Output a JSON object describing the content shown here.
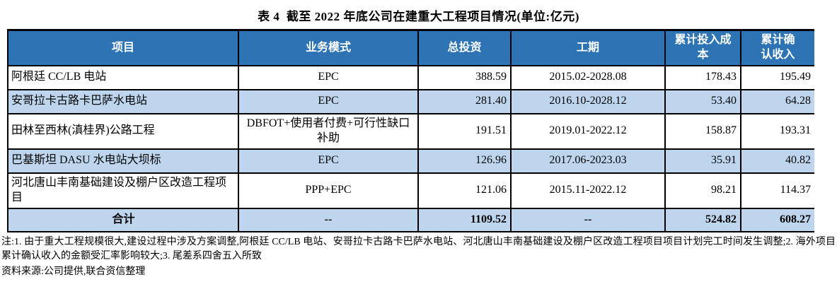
{
  "title": "表 4  截至 2022 年底公司在建重大工程项目情况(单位:亿元)",
  "colors": {
    "header_bg": "#2E74B5",
    "band_bg": "#BDD6EE",
    "border": "#000000",
    "header_text": "#FFFFFF"
  },
  "table": {
    "columns": [
      {
        "label": "项目"
      },
      {
        "label": "业务模式"
      },
      {
        "label": "总投资"
      },
      {
        "label": "工期"
      },
      {
        "label": "累计投入成\n本"
      },
      {
        "label": "累计确\n认收入"
      }
    ],
    "rows": [
      {
        "project": "阿根廷 CC/LB 电站",
        "model": "EPC",
        "investment": "388.59",
        "period": "2015.02-2028.08",
        "cost": "178.43",
        "revenue": "195.49"
      },
      {
        "project": "安哥拉卡古路卡巴萨水电站",
        "model": "EPC",
        "investment": "281.40",
        "period": "2016.10-2028.12",
        "cost": "53.40",
        "revenue": "64.28"
      },
      {
        "project": "田林至西林(滇桂界)公路工程",
        "model": "DBFOT+使用者付费+可行性缺口补助",
        "investment": "191.51",
        "period": "2019.01-2022.12",
        "cost": "158.87",
        "revenue": "193.31"
      },
      {
        "project": "巴基斯坦 DASU 水电站大坝标",
        "model": "EPC",
        "investment": "126.96",
        "period": "2017.06-2023.03",
        "cost": "35.91",
        "revenue": "40.82"
      },
      {
        "project": "河北唐山丰南基础建设及棚户区改造工程项目",
        "model": "PPP+EPC",
        "investment": "121.06",
        "period": "2015.11-2022.12",
        "cost": "98.21",
        "revenue": "114.37"
      }
    ],
    "total": {
      "project": "合计",
      "model": "--",
      "investment": "1109.52",
      "period": "--",
      "cost": "524.82",
      "revenue": "608.27"
    }
  },
  "notes": "注:1. 由于重大工程规模很大,建设过程中涉及方案调整,阿根廷 CC/LB 电站、安哥拉卡古路卡巴萨水电站、河北唐山丰南基础建设及棚户区改造工程项目项目计划完工时间发生调整;2. 海外项目累计确认收入的金额受汇率影响较大;3. 尾差系四舍五入所致",
  "source": "资料来源:公司提供,联合资信整理"
}
